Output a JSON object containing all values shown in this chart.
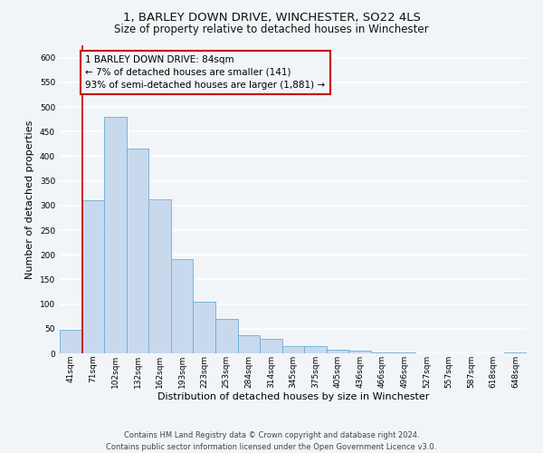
{
  "title": "1, BARLEY DOWN DRIVE, WINCHESTER, SO22 4LS",
  "subtitle": "Size of property relative to detached houses in Winchester",
  "xlabel": "Distribution of detached houses by size in Winchester",
  "ylabel": "Number of detached properties",
  "bar_labels": [
    "41sqm",
    "71sqm",
    "102sqm",
    "132sqm",
    "162sqm",
    "193sqm",
    "223sqm",
    "253sqm",
    "284sqm",
    "314sqm",
    "345sqm",
    "375sqm",
    "405sqm",
    "436sqm",
    "466sqm",
    "496sqm",
    "527sqm",
    "557sqm",
    "587sqm",
    "618sqm",
    "648sqm"
  ],
  "bar_values": [
    47,
    311,
    480,
    415,
    313,
    192,
    105,
    69,
    36,
    30,
    14,
    14,
    8,
    5,
    2,
    1,
    0,
    0,
    0,
    0,
    1
  ],
  "bar_color": "#c8d9ee",
  "bar_edge_color": "#6baed6",
  "bar_width": 1.0,
  "ylim": [
    0,
    625
  ],
  "yticks": [
    0,
    50,
    100,
    150,
    200,
    250,
    300,
    350,
    400,
    450,
    500,
    550,
    600
  ],
  "property_line_x": 1.0,
  "property_line_color": "#cc0000",
  "annotation_text": "1 BARLEY DOWN DRIVE: 84sqm\n← 7% of detached houses are smaller (141)\n93% of semi-detached houses are larger (1,881) →",
  "annotation_box_color": "#cc0000",
  "footer_line1": "Contains HM Land Registry data © Crown copyright and database right 2024.",
  "footer_line2": "Contains public sector information licensed under the Open Government Licence v3.0.",
  "background_color": "#f2f5f8",
  "grid_color": "#ffffff",
  "title_fontsize": 9.5,
  "subtitle_fontsize": 8.5,
  "axis_label_fontsize": 8,
  "tick_fontsize": 6.5,
  "annotation_fontsize": 7.5,
  "footer_fontsize": 6
}
